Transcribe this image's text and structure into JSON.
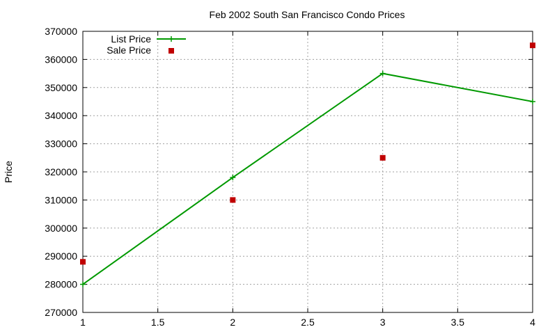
{
  "chart_data": {
    "type": "line",
    "title": "Feb 2002 South San Francisco Condo Prices",
    "xlabel": "",
    "ylabel": "Price",
    "xlim": [
      1,
      4
    ],
    "ylim": [
      270000,
      370000
    ],
    "xticks": [
      "1",
      "1.5",
      "2",
      "2.5",
      "3",
      "3.5",
      "4"
    ],
    "xtick_values": [
      1,
      1.5,
      2,
      2.5,
      3,
      3.5,
      4
    ],
    "yticks": [
      "270000",
      "280000",
      "290000",
      "300000",
      "310000",
      "320000",
      "330000",
      "340000",
      "350000",
      "360000",
      "370000"
    ],
    "ytick_values": [
      270000,
      280000,
      290000,
      300000,
      310000,
      320000,
      330000,
      340000,
      350000,
      360000,
      370000
    ],
    "grid": true,
    "legend_position": "top-left",
    "series": [
      {
        "name": "List Price",
        "style": "line-points",
        "marker": "plus",
        "color": "#009900",
        "x": [
          1,
          2,
          3,
          4
        ],
        "y": [
          280000,
          318000,
          355000,
          345000
        ]
      },
      {
        "name": "Sale Price",
        "style": "points",
        "marker": "square",
        "color": "#c00000",
        "x": [
          1,
          2,
          3,
          4
        ],
        "y": [
          288000,
          310000,
          325000,
          365000
        ]
      }
    ]
  }
}
